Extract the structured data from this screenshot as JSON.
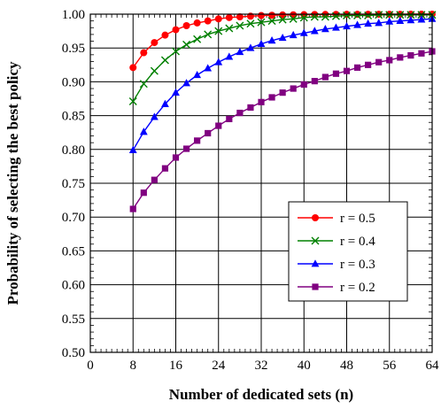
{
  "chart_data": {
    "type": "line",
    "title": "",
    "xlabel": "Number of dedicated sets (n)",
    "ylabel": "Probability of selecting the best policy",
    "xlim": [
      0,
      64
    ],
    "ylim": [
      0.5,
      1.0
    ],
    "xticks": [
      "0",
      "8",
      "16",
      "24",
      "32",
      "40",
      "48",
      "56",
      "64"
    ],
    "yticks": [
      "0.50",
      "0.55",
      "0.60",
      "0.65",
      "0.70",
      "0.75",
      "0.80",
      "0.85",
      "0.90",
      "0.95",
      "1.00"
    ],
    "grid": true,
    "legend_position": "bottom-right",
    "x": [
      8,
      10,
      12,
      14,
      16,
      18,
      20,
      22,
      24,
      26,
      28,
      30,
      32,
      34,
      36,
      38,
      40,
      42,
      44,
      46,
      48,
      50,
      52,
      54,
      56,
      58,
      60,
      62,
      64
    ],
    "series": [
      {
        "name": "r = 0.5",
        "color": "#ff0000",
        "marker": "circle",
        "values": [
          0.921,
          0.943,
          0.958,
          0.969,
          0.977,
          0.983,
          0.987,
          0.99,
          0.993,
          0.995,
          0.996,
          0.997,
          0.998,
          0.9984,
          0.9988,
          0.9991,
          0.9993,
          0.9995,
          0.9996,
          0.9997,
          0.9998,
          0.9998,
          0.9999,
          0.9999,
          0.9999,
          0.9999,
          1.0,
          1.0,
          1.0
        ]
      },
      {
        "name": "r = 0.4",
        "color": "#008000",
        "marker": "x",
        "values": [
          0.871,
          0.897,
          0.916,
          0.932,
          0.945,
          0.955,
          0.963,
          0.97,
          0.975,
          0.979,
          0.983,
          0.986,
          0.988,
          0.99,
          0.992,
          0.993,
          0.995,
          0.996,
          0.996,
          0.997,
          0.998,
          0.998,
          0.998,
          0.999,
          0.999,
          0.999,
          0.999,
          0.999,
          0.999
        ]
      },
      {
        "name": "r = 0.3",
        "color": "#0000ff",
        "marker": "triangle",
        "values": [
          0.799,
          0.826,
          0.848,
          0.867,
          0.884,
          0.898,
          0.91,
          0.92,
          0.929,
          0.937,
          0.944,
          0.95,
          0.956,
          0.961,
          0.965,
          0.969,
          0.972,
          0.975,
          0.978,
          0.98,
          0.982,
          0.984,
          0.986,
          0.987,
          0.989,
          0.99,
          0.991,
          0.992,
          0.993
        ]
      },
      {
        "name": "r = 0.2",
        "color": "#800080",
        "marker": "square",
        "values": [
          0.712,
          0.736,
          0.755,
          0.772,
          0.788,
          0.801,
          0.813,
          0.824,
          0.835,
          0.845,
          0.854,
          0.862,
          0.87,
          0.877,
          0.884,
          0.89,
          0.896,
          0.901,
          0.907,
          0.912,
          0.916,
          0.921,
          0.925,
          0.929,
          0.932,
          0.936,
          0.939,
          0.942,
          0.945
        ]
      }
    ]
  }
}
